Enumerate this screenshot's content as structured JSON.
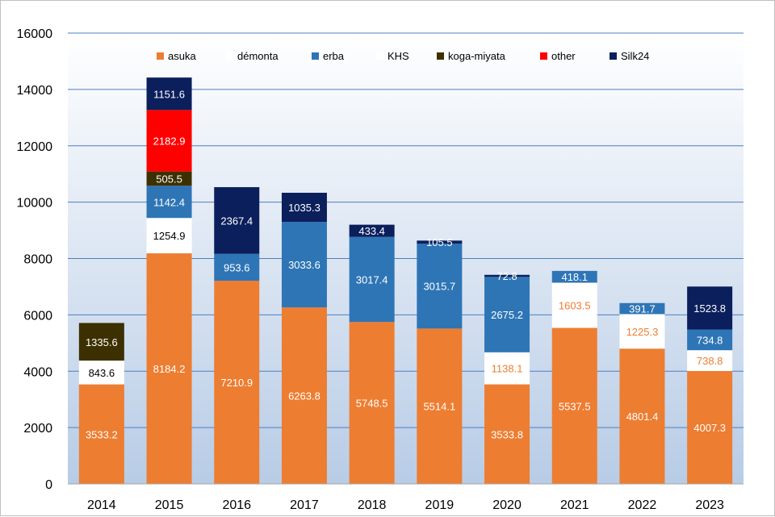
{
  "chart_data": {
    "type": "bar",
    "stacked": true,
    "title": "",
    "xlabel": "",
    "ylabel": "",
    "ylim": [
      0,
      16000
    ],
    "yticks": [
      0,
      2000,
      4000,
      6000,
      8000,
      10000,
      12000,
      14000,
      16000
    ],
    "grid": true,
    "legend_position": "top",
    "plot_background": "gradient from light blue (bottom) to white (top)",
    "categories": [
      "2014",
      "2015",
      "2016",
      "2017",
      "2018",
      "2019",
      "2020",
      "2021",
      "2022",
      "2023"
    ],
    "series": [
      {
        "name": "asuka",
        "color": "#ED7D31",
        "label_color": "#ffffff",
        "values": [
          3533.2,
          8184.2,
          7210.9,
          6263.8,
          5748.5,
          5514.1,
          3533.8,
          5537.5,
          4801.4,
          4007.3
        ]
      },
      {
        "name": "démonta",
        "color": "#ffffff",
        "label_color": "#000000",
        "values": [
          843.6,
          1254.9,
          null,
          null,
          null,
          null,
          null,
          null,
          null,
          null
        ]
      },
      {
        "name": "erba",
        "color": "#2E75B6",
        "label_color": "#ffffff",
        "values": [
          null,
          1142.4,
          953.6,
          3033.6,
          3017.4,
          3015.7,
          2675.2,
          418.1,
          391.7,
          734.8
        ]
      },
      {
        "name": "KHS",
        "color": "#ffffff",
        "label_color": "#ED7D31",
        "values": [
          null,
          null,
          null,
          null,
          null,
          null,
          1138.1,
          1603.5,
          1225.3,
          738.8
        ]
      },
      {
        "name": "koga-miyata",
        "color": "#3D3000",
        "label_color": "#ffffff",
        "values": [
          1335.6,
          505.5,
          null,
          null,
          null,
          null,
          null,
          null,
          null,
          null
        ]
      },
      {
        "name": "other",
        "color": "#FF0000",
        "label_color": "#ffffff",
        "values": [
          null,
          2182.9,
          null,
          null,
          null,
          null,
          null,
          null,
          null,
          null
        ]
      },
      {
        "name": "Silk24",
        "color": "#0B1F5C",
        "label_color": "#ffffff",
        "values": [
          null,
          1151.6,
          2367.4,
          1035.3,
          433.4,
          105.5,
          72.8,
          null,
          null,
          1523.8
        ]
      }
    ],
    "stack_order": [
      "asuka",
      "démonta",
      "KHS",
      "erba",
      "koga-miyata",
      "other",
      "Silk24"
    ]
  }
}
